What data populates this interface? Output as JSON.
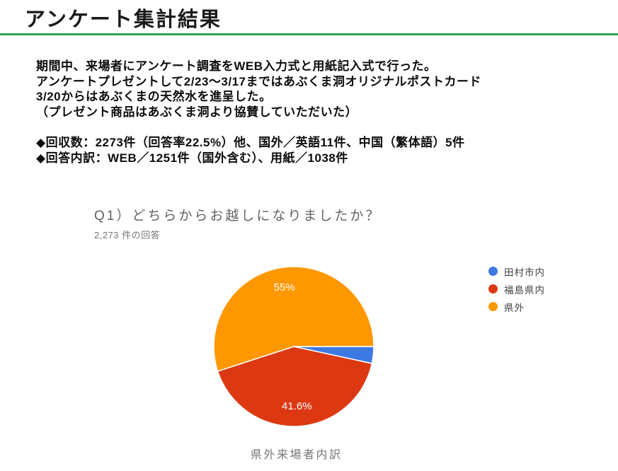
{
  "page": {
    "title": "アンケート集計結果",
    "accent_green": "#2ea350"
  },
  "intro": {
    "lines": [
      "期間中、来場者にアンケート調査をWEB入力式と用紙記入式で行った。",
      "アンケートプレゼントして2/23～3/17まではあぶくま洞オリジナルポストカード",
      "3/20からはあぶくまの天然水を進呈した。",
      "（プレゼント商品はあぶくま洞より協賛していただいた）"
    ],
    "bullets": [
      "◆回収数：2273件（回答率22.5%）他、国外／英語11件、中国（繁体語）5件",
      "◆回答内訳：WEB／1251件（国外含む）、用紙／1038件"
    ]
  },
  "chart": {
    "question": "Q1）どちらからお越しになりましたか？",
    "responses": "2,273 件の回答",
    "caption": "県外来場者内訳"
  },
  "chart_data": {
    "type": "pie",
    "title": "Q1）どちらからお越しになりましたか？",
    "subtitle": "2,273 件の回答",
    "total_responses": 2273,
    "start_angle": "3-o'clock",
    "direction": "clockwise",
    "legend_position": "right",
    "label_color": "#ffffff",
    "slices": [
      {
        "label": "田村市内",
        "value": 3.4,
        "color": "#3d79e2",
        "data_label": ""
      },
      {
        "label": "福島県内",
        "value": 41.6,
        "color": "#dc3912",
        "data_label": "41.6%"
      },
      {
        "label": "県外",
        "value": 55.0,
        "color": "#ff9800",
        "data_label": "55%"
      }
    ]
  }
}
